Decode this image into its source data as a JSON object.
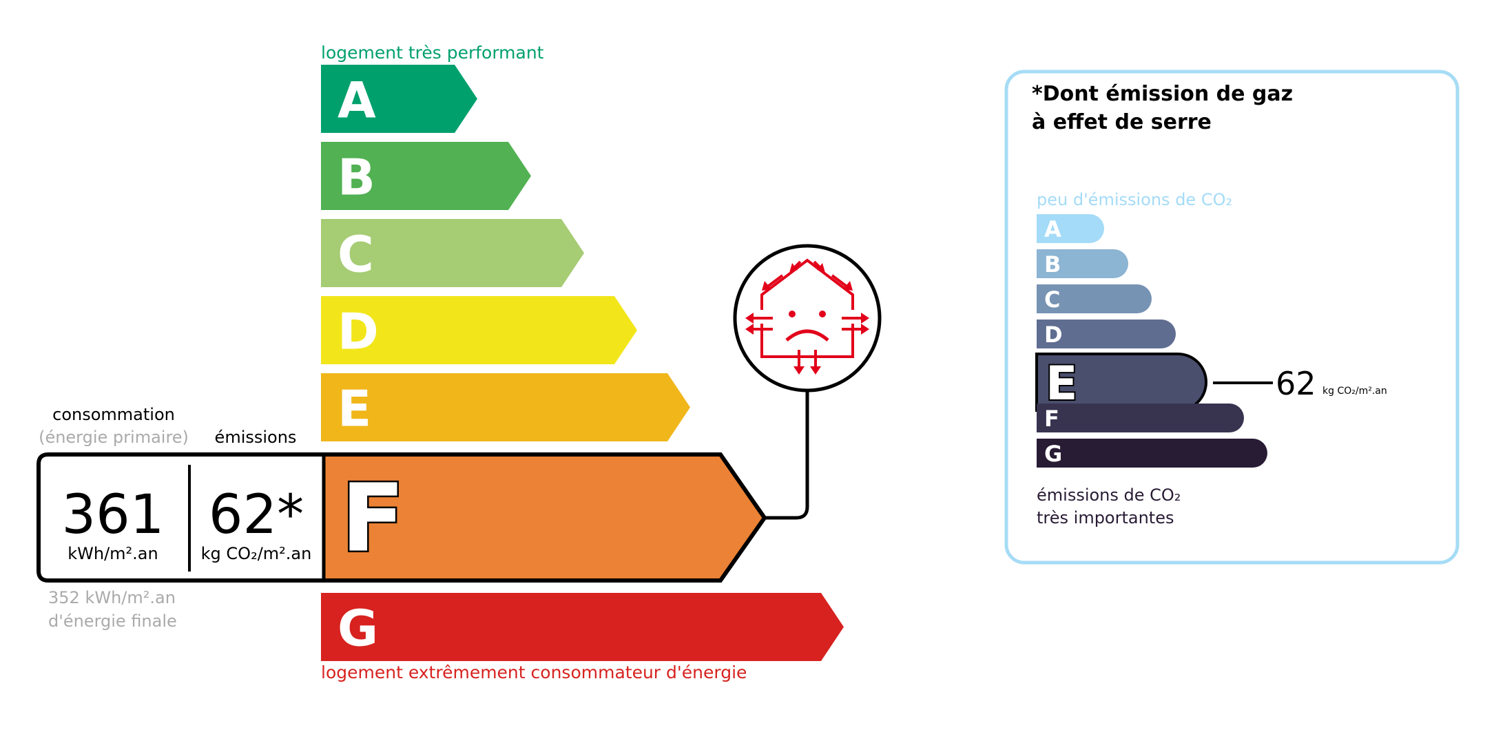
{
  "energy": {
    "top_label": "logement très performant",
    "bottom_label": "logement extrêmement consommateur d'énergie",
    "classes": [
      {
        "letter": "A",
        "color": "#00a06d"
      },
      {
        "letter": "B",
        "color": "#52b153"
      },
      {
        "letter": "C",
        "color": "#a6cc74"
      },
      {
        "letter": "D",
        "color": "#f2e61b"
      },
      {
        "letter": "E",
        "color": "#f0b61a"
      },
      {
        "letter": "F",
        "color": "#eb8235"
      },
      {
        "letter": "G",
        "color": "#d7221f"
      }
    ],
    "current_class": "F",
    "consumption_label": "consommation",
    "consumption_sublabel": "(énergie primaire)",
    "emissions_label": "émissions",
    "consumption_value": "361",
    "consumption_unit": "kWh/m².an",
    "emissions_value": "62*",
    "emissions_unit": "kg CO₂/m².an",
    "final_energy_value": "352 kWh/m².an",
    "final_energy_label": "d'énergie finale",
    "icon": "poorly-insulated-house-icon",
    "icon_color": "#e2001a"
  },
  "ghg": {
    "title_line1": "*Dont émission de gaz",
    "title_line2": "à effet de serre",
    "top_label": "peu d'émissions de CO₂",
    "bottom_label_line1": "émissions de CO₂",
    "bottom_label_line2": "très importantes",
    "classes": [
      {
        "letter": "A",
        "color": "#a4dbf8"
      },
      {
        "letter": "B",
        "color": "#8cb4d3"
      },
      {
        "letter": "C",
        "color": "#7793b3"
      },
      {
        "letter": "D",
        "color": "#5f6d91"
      },
      {
        "letter": "E",
        "color": "#4b4f6e"
      },
      {
        "letter": "F",
        "color": "#38334f"
      },
      {
        "letter": "G",
        "color": "#281b34"
      }
    ],
    "current_class": "E",
    "value": "62",
    "unit": "kg CO₂/m².an",
    "border_color": "#a6dcf5"
  }
}
